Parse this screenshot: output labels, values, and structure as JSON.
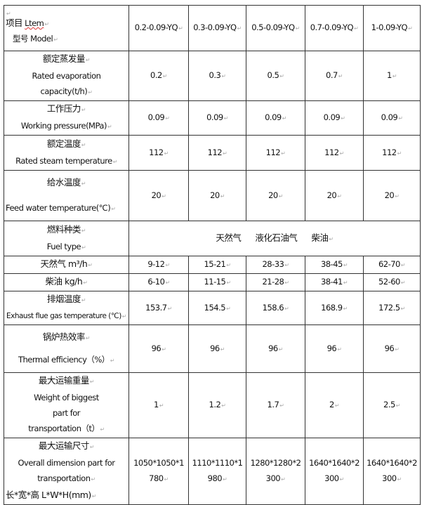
{
  "header": {
    "item_cn": "项目",
    "item_en": "Ltem",
    "model_label": "型号 Model",
    "models": [
      "0.2-0.09-YQ",
      "0.3-0.09-YQ",
      "0.5-0.09-YQ",
      "0.7-0.09-YQ",
      "1-0.09-YQ"
    ]
  },
  "rows": [
    {
      "cn": "额定蒸发量",
      "en": "Rated evaporation capacity(t/h)",
      "values": [
        "0.2",
        "0.3",
        "0.5",
        "0.7",
        "1"
      ]
    },
    {
      "cn": "工作压力",
      "en": "Working pressure(MPa)",
      "values": [
        "0.09",
        "0.09",
        "0.09",
        "0.09",
        "0.09"
      ]
    },
    {
      "cn": "额定温度",
      "en": "Rated steam temperature",
      "values": [
        "112",
        "112",
        "112",
        "112",
        "112"
      ]
    },
    {
      "cn": "给水温度",
      "en": "Feed water temperature(℃)",
      "values": [
        "20",
        "20",
        "20",
        "20",
        "20"
      ]
    }
  ],
  "fuel": {
    "cn": "燃料种类",
    "en": "Fuel type",
    "types": [
      "天然气",
      "液化石油气",
      "柴油"
    ]
  },
  "rows2": [
    {
      "label": "天然气 m³/h",
      "values": [
        "9-12",
        "15-21",
        "28-33",
        "38-45",
        "62-70"
      ]
    },
    {
      "label": "柴油 kg/h",
      "values": [
        "6-10",
        "11-15",
        "21-28",
        "38-41",
        "52-60"
      ]
    }
  ],
  "rows3": [
    {
      "cn": "排烟温度",
      "en": "Exhaust flue gas temperature (℃)",
      "values": [
        "153.7",
        "154.5",
        "158.6",
        "168.9",
        "172.5"
      ]
    },
    {
      "cn": "锅炉热效率",
      "en": "Thermal efficiency（%）",
      "values": [
        "96",
        "96",
        "96",
        "96",
        "96"
      ]
    },
    {
      "cn": "最大运输重量",
      "en": "Weight of biggest part for transportation（t）",
      "values": [
        "1",
        "1.2",
        "1.7",
        "2",
        "2.5"
      ]
    }
  ],
  "dims": {
    "cn": "最大运输尺寸",
    "en1": "Overall dimension part for",
    "en2": "transportation",
    "cn2": "长*宽*高 L*W*H(mm)",
    "values": [
      [
        "1050*1050*1",
        "780"
      ],
      [
        "1110*1110*1",
        "980"
      ],
      [
        "1280*1280*2",
        "300"
      ],
      [
        "1640*1640*2",
        "300"
      ],
      [
        "1640*1640*2",
        "300"
      ]
    ]
  }
}
